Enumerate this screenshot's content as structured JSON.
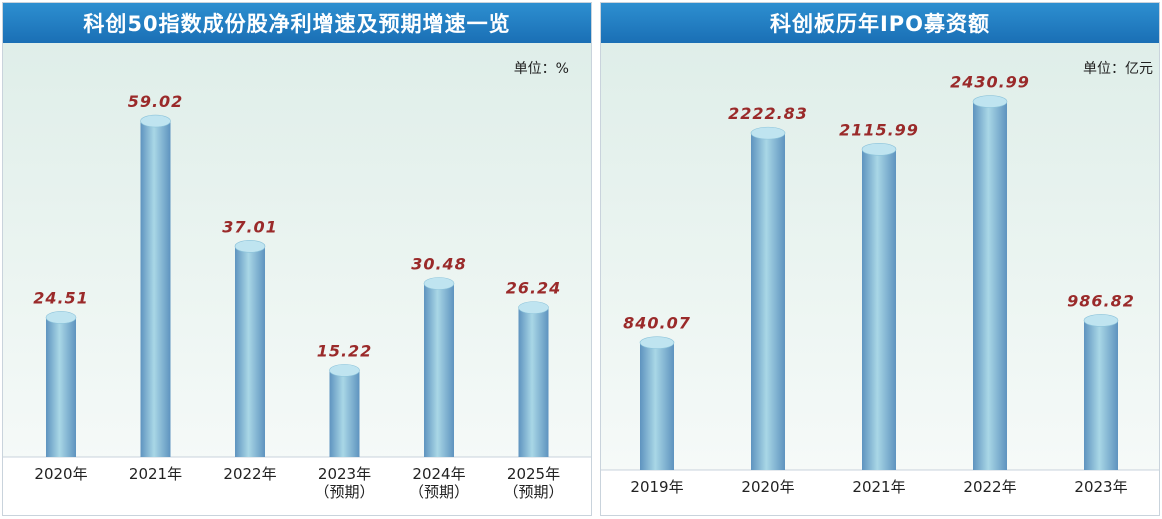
{
  "chart_data": [
    {
      "type": "bar",
      "title": "科创50指数成份股净利增速及预期增速一览",
      "unit": "单位：%",
      "categories": [
        [
          "2020年"
        ],
        [
          "2021年"
        ],
        [
          "2022年"
        ],
        [
          "2023年",
          "（预期）"
        ],
        [
          "2024年",
          "（预期）"
        ],
        [
          "2025年",
          "（预期）"
        ]
      ],
      "values": [
        24.51,
        59.02,
        37.01,
        15.22,
        30.48,
        26.24
      ],
      "value_labels": [
        "24.51",
        "59.02",
        "37.01",
        "15.22",
        "30.48",
        "26.24"
      ],
      "ylim": [
        0,
        65
      ],
      "grid": false,
      "colors": {
        "bar_light": "#a9d7e6",
        "bar_dark": "#5e93bf",
        "value": "#9a2a2a"
      }
    },
    {
      "type": "bar",
      "title": "科创板历年IPO募资额",
      "unit": "单位：亿元",
      "categories": [
        [
          "2019年"
        ],
        [
          "2020年"
        ],
        [
          "2021年"
        ],
        [
          "2022年"
        ],
        [
          "2023年"
        ]
      ],
      "values": [
        840.07,
        2222.83,
        2115.99,
        2430.99,
        986.82
      ],
      "value_labels": [
        "840.07",
        "2222.83",
        "2115.99",
        "2430.99",
        "986.82"
      ],
      "ylim": [
        0,
        2580
      ],
      "grid": false,
      "colors": {
        "bar_light": "#a9d7e6",
        "bar_dark": "#5e93bf",
        "value": "#9a2a2a"
      }
    }
  ]
}
